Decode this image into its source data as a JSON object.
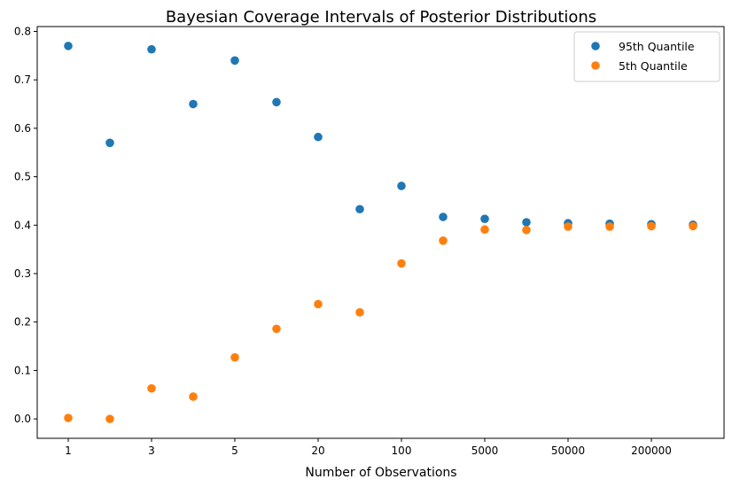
{
  "chart_data": {
    "type": "scatter",
    "title": "Bayesian Coverage Intervals of Posterior Distributions",
    "xlabel": "Number of Observations",
    "ylabel": "",
    "x_positions": [
      0,
      1,
      2,
      3,
      4,
      5,
      6,
      7,
      8,
      9,
      10,
      11,
      12,
      13,
      14,
      15
    ],
    "x_tick_positions": [
      0,
      2,
      4,
      6,
      8,
      10,
      12,
      14
    ],
    "x_tick_labels": [
      "1",
      "3",
      "5",
      "20",
      "100",
      "5000",
      "50000",
      "200000"
    ],
    "y_ticks": [
      0.0,
      0.1,
      0.2,
      0.3,
      0.4,
      0.5,
      0.6,
      0.7,
      0.8
    ],
    "y_tick_labels": [
      "0.0",
      "0.1",
      "0.2",
      "0.3",
      "0.4",
      "0.5",
      "0.6",
      "0.7",
      "0.8"
    ],
    "ylim": [
      -0.04,
      0.81
    ],
    "grid": false,
    "legend": "top-right",
    "series": [
      {
        "name": "95th Quantile",
        "color": "#1f77b4",
        "values": [
          0.77,
          0.57,
          0.763,
          0.65,
          0.74,
          0.654,
          0.582,
          0.433,
          0.481,
          0.417,
          0.413,
          0.406,
          0.404,
          0.403,
          0.402,
          0.401
        ]
      },
      {
        "name": "5th Quantile",
        "color": "#ff7f0e",
        "values": [
          0.002,
          0.0,
          0.063,
          0.046,
          0.127,
          0.186,
          0.237,
          0.22,
          0.321,
          0.368,
          0.391,
          0.39,
          0.397,
          0.397,
          0.398,
          0.398
        ]
      }
    ]
  }
}
